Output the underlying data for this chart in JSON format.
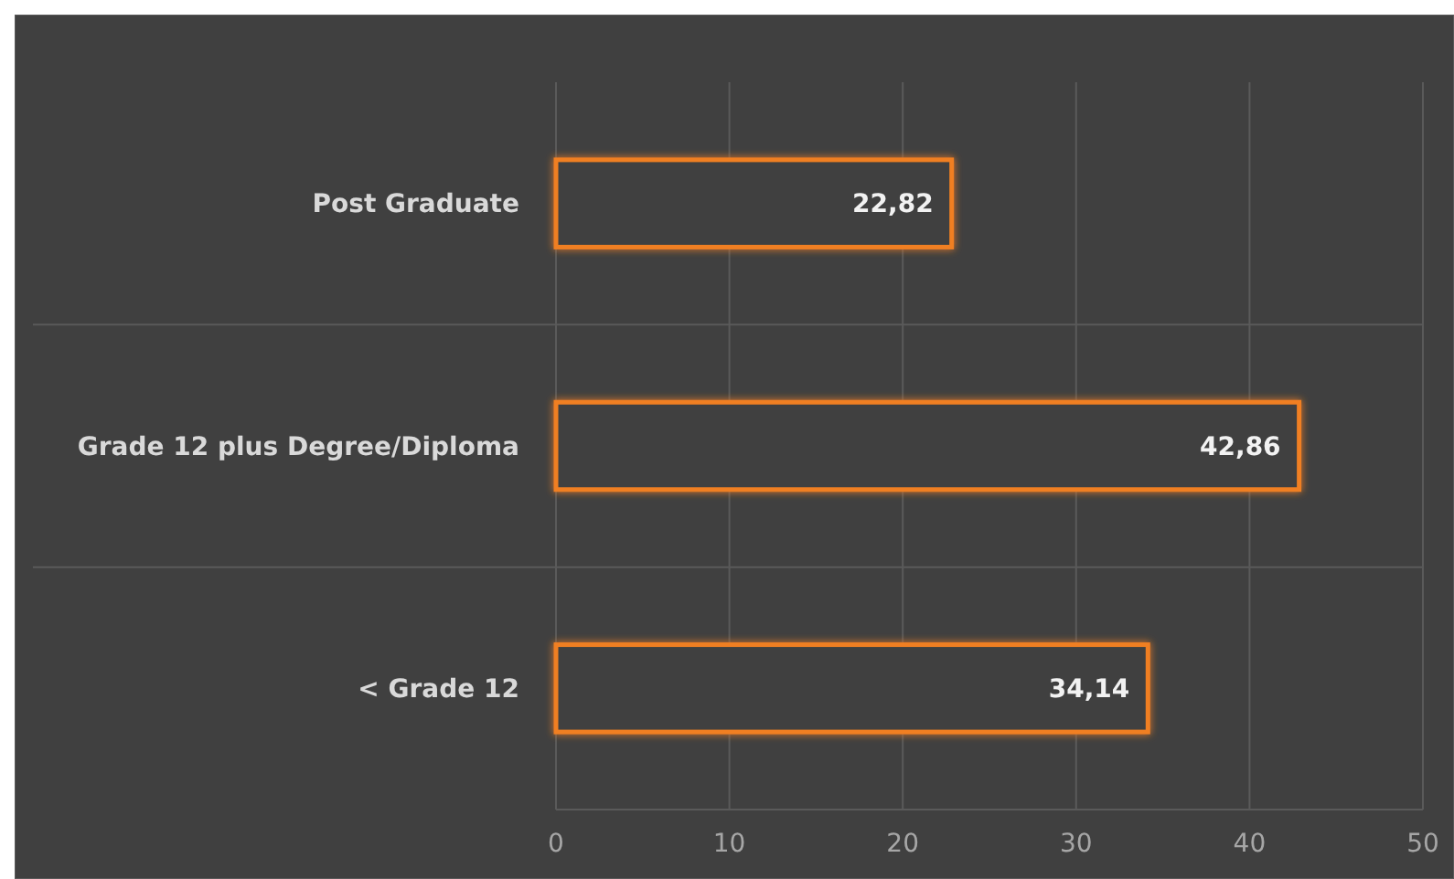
{
  "chart_data": {
    "type": "bar",
    "orientation": "horizontal",
    "categories": [
      "Post Graduate",
      "Grade 12 plus Degree/Diploma",
      "< Grade 12"
    ],
    "values": [
      22.82,
      42.86,
      34.14
    ],
    "value_labels": [
      "22,82",
      "42,86",
      "34,14"
    ],
    "color": "#f07f22",
    "xlim": [
      0,
      50
    ],
    "xticks": [
      0,
      10,
      20,
      30,
      40,
      50
    ],
    "grid": "x"
  }
}
